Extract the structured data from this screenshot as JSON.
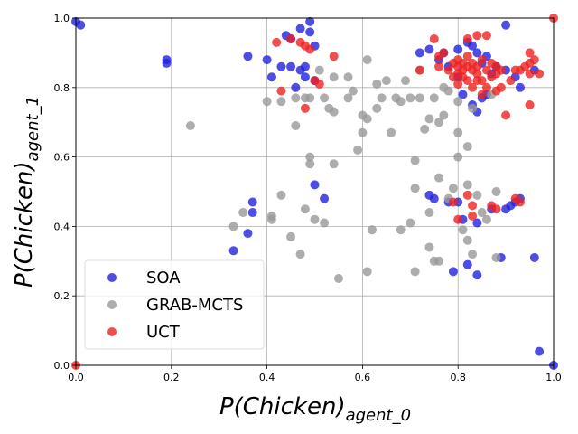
{
  "chart_data": {
    "type": "scatter",
    "title": "",
    "xlabel_main": "P(Chicken)",
    "xlabel_sub": "agent_0",
    "ylabel_main": "P(Chicken)",
    "ylabel_sub": "agent_1",
    "xlim": [
      0.0,
      1.0
    ],
    "ylim": [
      0.0,
      1.0
    ],
    "xticks": [
      "0.0",
      "0.2",
      "0.4",
      "0.6",
      "0.8",
      "1.0"
    ],
    "yticks": [
      "0.0",
      "0.2",
      "0.4",
      "0.6",
      "0.8",
      "1.0"
    ],
    "grid": true,
    "legend_position": "bottom-left",
    "series": [
      {
        "name": "SOA",
        "color": "#2222dd",
        "points": [
          [
            0.0,
            0.99
          ],
          [
            0.01,
            0.98
          ],
          [
            0.19,
            0.88
          ],
          [
            0.19,
            0.87
          ],
          [
            0.36,
            0.89
          ],
          [
            0.4,
            0.88
          ],
          [
            0.41,
            0.83
          ],
          [
            0.43,
            0.86
          ],
          [
            0.44,
            0.95
          ],
          [
            0.45,
            0.94
          ],
          [
            0.45,
            0.86
          ],
          [
            0.46,
            0.8
          ],
          [
            0.47,
            0.85
          ],
          [
            0.47,
            0.97
          ],
          [
            0.48,
            0.86
          ],
          [
            0.49,
            0.99
          ],
          [
            0.49,
            0.96
          ],
          [
            0.5,
            0.92
          ],
          [
            0.48,
            0.83
          ],
          [
            0.5,
            0.82
          ],
          [
            0.72,
            0.9
          ],
          [
            0.74,
            0.91
          ],
          [
            0.76,
            0.88
          ],
          [
            0.77,
            0.9
          ],
          [
            0.78,
            0.86
          ],
          [
            0.8,
            0.91
          ],
          [
            0.82,
            0.93
          ],
          [
            0.83,
            0.92
          ],
          [
            0.84,
            0.9
          ],
          [
            0.85,
            0.87
          ],
          [
            0.86,
            0.89
          ],
          [
            0.87,
            0.84
          ],
          [
            0.88,
            0.86
          ],
          [
            0.9,
            0.85
          ],
          [
            0.9,
            0.98
          ],
          [
            0.93,
            0.8
          ],
          [
            0.92,
            0.83
          ],
          [
            0.96,
            0.85
          ],
          [
            0.8,
            0.83
          ],
          [
            0.81,
            0.78
          ],
          [
            0.83,
            0.75
          ],
          [
            0.84,
            0.73
          ],
          [
            0.85,
            0.77
          ],
          [
            0.86,
            0.78
          ],
          [
            0.37,
            0.47
          ],
          [
            0.37,
            0.44
          ],
          [
            0.36,
            0.38
          ],
          [
            0.33,
            0.33
          ],
          [
            0.5,
            0.52
          ],
          [
            0.52,
            0.48
          ],
          [
            0.74,
            0.49
          ],
          [
            0.75,
            0.48
          ],
          [
            0.78,
            0.47
          ],
          [
            0.8,
            0.47
          ],
          [
            0.81,
            0.42
          ],
          [
            0.84,
            0.41
          ],
          [
            0.87,
            0.45
          ],
          [
            0.9,
            0.45
          ],
          [
            0.91,
            0.46
          ],
          [
            0.92,
            0.47
          ],
          [
            0.93,
            0.48
          ],
          [
            0.79,
            0.27
          ],
          [
            0.82,
            0.29
          ],
          [
            0.84,
            0.26
          ],
          [
            0.89,
            0.31
          ],
          [
            0.96,
            0.31
          ],
          [
            0.97,
            0.04
          ],
          [
            1.0,
            0.0
          ]
        ]
      },
      {
        "name": "GRAB-MCTS",
        "color": "#999999",
        "points": [
          [
            0.24,
            0.69
          ],
          [
            0.33,
            0.4
          ],
          [
            0.35,
            0.44
          ],
          [
            0.4,
            0.76
          ],
          [
            0.41,
            0.43
          ],
          [
            0.41,
            0.42
          ],
          [
            0.43,
            0.49
          ],
          [
            0.43,
            0.76
          ],
          [
            0.45,
            0.37
          ],
          [
            0.46,
            0.69
          ],
          [
            0.46,
            0.77
          ],
          [
            0.47,
            0.32
          ],
          [
            0.48,
            0.45
          ],
          [
            0.49,
            0.6
          ],
          [
            0.49,
            0.58
          ],
          [
            0.49,
            0.77
          ],
          [
            0.5,
            0.42
          ],
          [
            0.51,
            0.85
          ],
          [
            0.52,
            0.41
          ],
          [
            0.52,
            0.77
          ],
          [
            0.53,
            0.74
          ],
          [
            0.54,
            0.73
          ],
          [
            0.54,
            0.58
          ],
          [
            0.54,
            0.83
          ],
          [
            0.55,
            0.25
          ],
          [
            0.57,
            0.83
          ],
          [
            0.57,
            0.77
          ],
          [
            0.58,
            0.79
          ],
          [
            0.59,
            0.62
          ],
          [
            0.6,
            0.72
          ],
          [
            0.6,
            0.67
          ],
          [
            0.61,
            0.88
          ],
          [
            0.61,
            0.71
          ],
          [
            0.62,
            0.39
          ],
          [
            0.63,
            0.74
          ],
          [
            0.63,
            0.81
          ],
          [
            0.61,
            0.27
          ],
          [
            0.64,
            0.77
          ],
          [
            0.65,
            0.82
          ],
          [
            0.66,
            0.67
          ],
          [
            0.67,
            0.77
          ],
          [
            0.68,
            0.39
          ],
          [
            0.68,
            0.76
          ],
          [
            0.69,
            0.82
          ],
          [
            0.7,
            0.41
          ],
          [
            0.7,
            0.77
          ],
          [
            0.71,
            0.59
          ],
          [
            0.72,
            0.85
          ],
          [
            0.72,
            0.77
          ],
          [
            0.73,
            0.68
          ],
          [
            0.74,
            0.71
          ],
          [
            0.74,
            0.44
          ],
          [
            0.74,
            0.34
          ],
          [
            0.75,
            0.3
          ],
          [
            0.75,
            0.77
          ],
          [
            0.76,
            0.54
          ],
          [
            0.76,
            0.7
          ],
          [
            0.76,
            0.3
          ],
          [
            0.77,
            0.72
          ],
          [
            0.77,
            0.8
          ],
          [
            0.78,
            0.48
          ],
          [
            0.78,
            0.79
          ],
          [
            0.79,
            0.51
          ],
          [
            0.8,
            0.6
          ],
          [
            0.8,
            0.76
          ],
          [
            0.8,
            0.67
          ],
          [
            0.81,
            0.39
          ],
          [
            0.82,
            0.63
          ],
          [
            0.82,
            0.52
          ],
          [
            0.82,
            0.36
          ],
          [
            0.83,
            0.32
          ],
          [
            0.83,
            0.74
          ],
          [
            0.84,
            0.49
          ],
          [
            0.85,
            0.44
          ],
          [
            0.86,
            0.42
          ],
          [
            0.87,
            0.78
          ],
          [
            0.88,
            0.31
          ],
          [
            0.88,
            0.5
          ],
          [
            0.71,
            0.27
          ],
          [
            0.71,
            0.51
          ],
          [
            0.48,
            0.77
          ]
        ]
      },
      {
        "name": "UCT",
        "color": "#ee2222",
        "points": [
          [
            0.42,
            0.93
          ],
          [
            0.45,
            0.94
          ],
          [
            0.47,
            0.93
          ],
          [
            0.48,
            0.92
          ],
          [
            0.49,
            0.91
          ],
          [
            0.5,
            0.82
          ],
          [
            0.51,
            0.81
          ],
          [
            0.54,
            0.89
          ],
          [
            0.43,
            0.79
          ],
          [
            0.48,
            0.74
          ],
          [
            0.72,
            0.85
          ],
          [
            0.75,
            0.94
          ],
          [
            0.76,
            0.86
          ],
          [
            0.76,
            0.89
          ],
          [
            0.77,
            0.9
          ],
          [
            0.78,
            0.85
          ],
          [
            0.79,
            0.87
          ],
          [
            0.79,
            0.83
          ],
          [
            0.8,
            0.86
          ],
          [
            0.8,
            0.84
          ],
          [
            0.8,
            0.81
          ],
          [
            0.8,
            0.88
          ],
          [
            0.81,
            0.85
          ],
          [
            0.81,
            0.83
          ],
          [
            0.81,
            0.87
          ],
          [
            0.82,
            0.82
          ],
          [
            0.82,
            0.86
          ],
          [
            0.82,
            0.89
          ],
          [
            0.82,
            0.94
          ],
          [
            0.83,
            0.85
          ],
          [
            0.83,
            0.8
          ],
          [
            0.83,
            0.87
          ],
          [
            0.84,
            0.95
          ],
          [
            0.84,
            0.84
          ],
          [
            0.84,
            0.82
          ],
          [
            0.84,
            0.86
          ],
          [
            0.85,
            0.88
          ],
          [
            0.85,
            0.82
          ],
          [
            0.85,
            0.78
          ],
          [
            0.86,
            0.95
          ],
          [
            0.86,
            0.85
          ],
          [
            0.86,
            0.8
          ],
          [
            0.87,
            0.87
          ],
          [
            0.87,
            0.83
          ],
          [
            0.88,
            0.84
          ],
          [
            0.88,
            0.79
          ],
          [
            0.88,
            0.86
          ],
          [
            0.89,
            0.8
          ],
          [
            0.89,
            0.85
          ],
          [
            0.9,
            0.72
          ],
          [
            0.91,
            0.82
          ],
          [
            0.92,
            0.85
          ],
          [
            0.93,
            0.85
          ],
          [
            0.94,
            0.86
          ],
          [
            0.95,
            0.87
          ],
          [
            0.95,
            0.9
          ],
          [
            0.95,
            0.75
          ],
          [
            0.95,
            0.84
          ],
          [
            0.96,
            0.88
          ],
          [
            0.97,
            0.84
          ],
          [
            0.79,
            0.47
          ],
          [
            0.8,
            0.42
          ],
          [
            0.82,
            0.49
          ],
          [
            0.83,
            0.46
          ],
          [
            0.83,
            0.43
          ],
          [
            0.87,
            0.46
          ],
          [
            0.88,
            0.45
          ],
          [
            0.92,
            0.48
          ],
          [
            0.93,
            0.47
          ],
          [
            1.0,
            1.0
          ],
          [
            0.0,
            0.0
          ]
        ]
      }
    ]
  }
}
